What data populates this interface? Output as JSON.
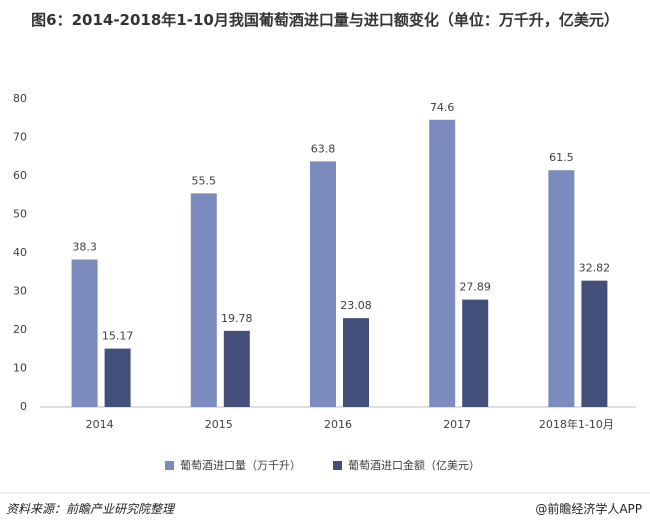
{
  "chart_data": {
    "type": "bar",
    "title": "图6：2014-2018年1-10月我国葡萄酒进口量与进口额变化（单位：万千升，亿美元）",
    "categories": [
      "2014",
      "2015",
      "2016",
      "2017",
      "2018年1-10月"
    ],
    "series": [
      {
        "name": "葡萄酒进口量（万千升）",
        "color": "#7b8bbd",
        "values": [
          38.3,
          55.5,
          63.8,
          74.6,
          61.5
        ]
      },
      {
        "name": "葡萄酒进口金额（亿美元）",
        "color": "#434f7a",
        "values": [
          15.17,
          19.78,
          23.08,
          27.89,
          32.82
        ]
      }
    ],
    "ylim": [
      0,
      80
    ],
    "yticks": [
      0,
      10,
      20,
      30,
      40,
      50,
      60,
      70,
      80
    ],
    "grid": false,
    "legend": "bottom",
    "source": "资料来源：前瞻产业研究院整理",
    "brand": "@前瞻经济学人APP"
  }
}
